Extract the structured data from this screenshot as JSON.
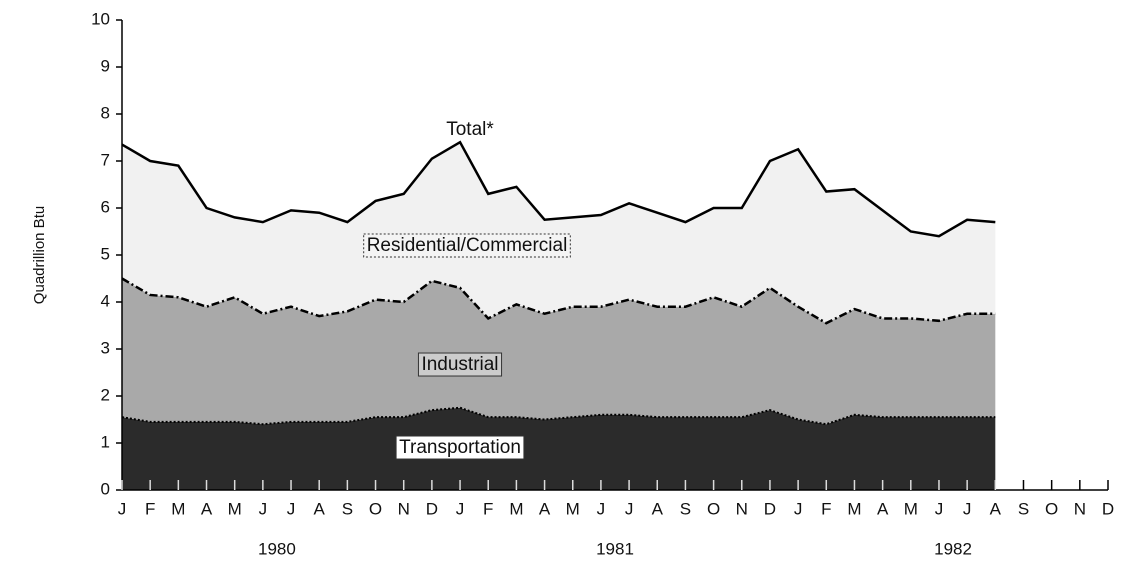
{
  "chart_data": {
    "type": "stacked_area",
    "y_label": "Quadrillion Btu",
    "annotations": [
      "Total*"
    ],
    "categories": [
      "J",
      "F",
      "M",
      "A",
      "M",
      "J",
      "J",
      "A",
      "S",
      "O",
      "N",
      "D",
      "J",
      "F",
      "M",
      "A",
      "M",
      "J",
      "J",
      "A",
      "S",
      "O",
      "N",
      "D",
      "J",
      "F",
      "M",
      "A",
      "M",
      "J",
      "J",
      "A",
      "S",
      "O",
      "N",
      "D"
    ],
    "years": [
      "1980",
      "1981",
      "1982"
    ],
    "series": [
      {
        "name": "Transportation",
        "color": "#2b2b2b",
        "values": [
          1.55,
          1.45,
          1.45,
          1.45,
          1.45,
          1.4,
          1.45,
          1.45,
          1.45,
          1.55,
          1.55,
          1.7,
          1.75,
          1.55,
          1.55,
          1.5,
          1.55,
          1.6,
          1.6,
          1.55,
          1.55,
          1.55,
          1.55,
          1.7,
          1.5,
          1.4,
          1.6,
          1.55,
          1.55,
          1.55,
          1.55,
          1.55,
          null,
          null,
          null,
          null
        ]
      },
      {
        "name": "Industrial",
        "color": "#a9a9a9",
        "values": [
          2.95,
          2.7,
          2.65,
          2.45,
          2.65,
          2.35,
          2.45,
          2.25,
          2.35,
          2.5,
          2.45,
          2.75,
          2.55,
          2.1,
          2.4,
          2.25,
          2.35,
          2.3,
          2.45,
          2.35,
          2.35,
          2.55,
          2.35,
          2.6,
          2.4,
          2.15,
          2.25,
          2.1,
          2.1,
          2.05,
          2.2,
          2.2,
          null,
          null,
          null,
          null
        ]
      },
      {
        "name": "Residential/Commercial",
        "color": "#f1f1f1",
        "values": [
          2.85,
          2.85,
          2.8,
          2.1,
          1.7,
          1.95,
          2.05,
          2.2,
          1.9,
          2.1,
          2.3,
          2.6,
          3.1,
          2.65,
          2.5,
          2.0,
          1.9,
          1.95,
          2.05,
          2.0,
          1.8,
          1.9,
          2.1,
          2.7,
          3.35,
          2.8,
          2.55,
          2.3,
          1.85,
          1.8,
          2.0,
          1.95,
          null,
          null,
          null,
          null
        ]
      }
    ],
    "ylim": [
      0,
      10
    ],
    "yticks": [
      0,
      1,
      2,
      3,
      4,
      5,
      6,
      7,
      8,
      9,
      10
    ]
  }
}
